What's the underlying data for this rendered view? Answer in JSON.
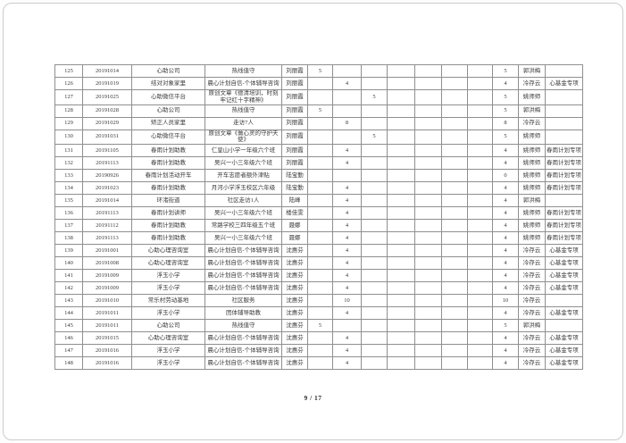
{
  "page": {
    "footer": "9 / 17"
  },
  "table": {
    "rows": [
      {
        "no": "125",
        "date": "20191014",
        "location": "心助公司",
        "activity": "热线值守",
        "volunteer": "刘丽霞",
        "hours": [
          "5",
          "",
          "",
          "",
          "",
          "",
          ""
        ],
        "total": "5",
        "reviewer": "郭洪梅",
        "project": ""
      },
      {
        "no": "126",
        "date": "20191019",
        "location": "结对对象家里",
        "activity": "晨心计划自信-个体辅导咨询",
        "volunteer": "刘丽霞",
        "hours": [
          "",
          "4",
          "",
          "",
          "",
          "",
          ""
        ],
        "total": "4",
        "reviewer": "冷存云",
        "project": "心基金专项"
      },
      {
        "no": "127",
        "date": "20191025",
        "location": "心助微信平台",
        "activity": "原创文章《德清培训，时刻牢记红十字精神》",
        "volunteer": "刘丽霞",
        "hours": [
          "",
          "",
          "5",
          "",
          "",
          "",
          ""
        ],
        "total": "5",
        "reviewer": "姚师师",
        "project": ""
      },
      {
        "no": "128",
        "date": "20191028",
        "location": "心助公司",
        "activity": "热线值守",
        "volunteer": "刘丽霞",
        "hours": [
          "5",
          "",
          "",
          "",
          "",
          "",
          ""
        ],
        "total": "5",
        "reviewer": "郭洪梅",
        "project": ""
      },
      {
        "no": "129",
        "date": "20191029",
        "location": "矫正人员家里",
        "activity": "走访7人",
        "volunteer": "刘丽霞",
        "hours": [
          "",
          "8",
          "",
          "",
          "",
          "",
          ""
        ],
        "total": "8",
        "reviewer": "冷存云",
        "project": ""
      },
      {
        "no": "130",
        "date": "20191031",
        "location": "心助微信平台",
        "activity": "原创文章《做心灵的守护天使》",
        "volunteer": "刘丽霞",
        "hours": [
          "",
          "",
          "5",
          "",
          "",
          "",
          ""
        ],
        "total": "5",
        "reviewer": "姚师师",
        "project": ""
      },
      {
        "no": "131",
        "date": "20191105",
        "location": "春雨计划助教",
        "activity": "仁皇山小学一年级六个班",
        "volunteer": "刘丽霞",
        "hours": [
          "",
          "4",
          "",
          "",
          "",
          "",
          ""
        ],
        "total": "4",
        "reviewer": "姚师师",
        "project": "春雨计划专项"
      },
      {
        "no": "132",
        "date": "20191113",
        "location": "春雨计划助教",
        "activity": "吴兴一小三年级六个班",
        "volunteer": "刘丽霞",
        "hours": [
          "",
          "4",
          "",
          "",
          "",
          "",
          ""
        ],
        "total": "4",
        "reviewer": "姚师师",
        "project": "春雨计划专项"
      },
      {
        "no": "133",
        "date": "20190926",
        "location": "春雨计划活动开车",
        "activity": "开车志愿者额外津贴",
        "volunteer": "陆宝勤",
        "hours": [
          "",
          "",
          "",
          "",
          "",
          "",
          ""
        ],
        "total": "0",
        "reviewer": "姚师师",
        "project": "春雨计划专项"
      },
      {
        "no": "134",
        "date": "20191023",
        "location": "春雨计划助教",
        "activity": "月河小学浮玉校区六年级",
        "volunteer": "陆宝勤",
        "hours": [
          "",
          "4",
          "",
          "",
          "",
          "",
          ""
        ],
        "total": "4",
        "reviewer": "姚师师",
        "project": "春雨计划专项"
      },
      {
        "no": "135",
        "date": "20191014",
        "location": "环渚街道",
        "activity": "社区走访1人",
        "volunteer": "陆峰",
        "hours": [
          "",
          "4",
          "",
          "",
          "",
          "",
          ""
        ],
        "total": "4",
        "reviewer": "郭洪梅",
        "project": ""
      },
      {
        "no": "136",
        "date": "20191113",
        "location": "春雨计划讲师",
        "activity": "吴兴一小三年级六个班",
        "volunteer": "楼佳雯",
        "hours": [
          "",
          "4",
          "",
          "",
          "",
          "",
          ""
        ],
        "total": "4",
        "reviewer": "姚师师",
        "project": "春雨计划专项"
      },
      {
        "no": "137",
        "date": "20191112",
        "location": "春雨计划助教",
        "activity": "常路学校三四年级五个班",
        "volunteer": "聂娜",
        "hours": [
          "",
          "4",
          "",
          "",
          "",
          "",
          ""
        ],
        "total": "4",
        "reviewer": "姚师师",
        "project": "春雨计划专项"
      },
      {
        "no": "138",
        "date": "20191113",
        "location": "春雨计划助教",
        "activity": "吴兴一小三年级六个班",
        "volunteer": "聂娜",
        "hours": [
          "",
          "4",
          "",
          "",
          "",
          "",
          ""
        ],
        "total": "4",
        "reviewer": "姚师师",
        "project": "春雨计划专项"
      },
      {
        "no": "139",
        "date": "20191001",
        "location": "心助心理咨询室",
        "activity": "晨心计划自信-个体辅导咨询",
        "volunteer": "沈惠芬",
        "hours": [
          "",
          "4",
          "",
          "",
          "",
          "",
          ""
        ],
        "total": "4",
        "reviewer": "冷存云",
        "project": "心基金专项"
      },
      {
        "no": "140",
        "date": "20191008",
        "location": "心助心理咨询室",
        "activity": "晨心计划自信-个体辅导咨询",
        "volunteer": "沈惠芬",
        "hours": [
          "",
          "4",
          "",
          "",
          "",
          "",
          ""
        ],
        "total": "4",
        "reviewer": "冷存云",
        "project": "心基金专项"
      },
      {
        "no": "141",
        "date": "20191009",
        "location": "浮玉小学",
        "activity": "晨心计划自信-个体辅导咨询",
        "volunteer": "沈惠芬",
        "hours": [
          "",
          "4",
          "",
          "",
          "",
          "",
          ""
        ],
        "total": "4",
        "reviewer": "冷存云",
        "project": "心基金专项"
      },
      {
        "no": "142",
        "date": "20191009",
        "location": "浮玉小学",
        "activity": "晨心计划自信-个体辅导咨询",
        "volunteer": "沈惠芬",
        "hours": [
          "",
          "4",
          "",
          "",
          "",
          "",
          ""
        ],
        "total": "4",
        "reviewer": "冷存云",
        "project": "心基金专项"
      },
      {
        "no": "143",
        "date": "20191010",
        "location": "常乐村劳动基地",
        "activity": "社区服务",
        "volunteer": "沈惠芬",
        "hours": [
          "",
          "10",
          "",
          "",
          "",
          "",
          ""
        ],
        "total": "10",
        "reviewer": "冷存云",
        "project": ""
      },
      {
        "no": "144",
        "date": "20191011",
        "location": "浮玉小学",
        "activity": "团体辅导助教",
        "volunteer": "沈惠芬",
        "hours": [
          "",
          "4",
          "",
          "",
          "",
          "",
          ""
        ],
        "total": "4",
        "reviewer": "冷存云",
        "project": "心基金专项"
      },
      {
        "no": "145",
        "date": "20191011",
        "location": "心助公司",
        "activity": "热线值守",
        "volunteer": "沈惠芬",
        "hours": [
          "5",
          "",
          "",
          "",
          "",
          "",
          ""
        ],
        "total": "5",
        "reviewer": "郭洪梅",
        "project": ""
      },
      {
        "no": "146",
        "date": "20191015",
        "location": "心助心理咨询室",
        "activity": "晨心计划自信-个体辅导咨询",
        "volunteer": "沈惠芬",
        "hours": [
          "",
          "4",
          "",
          "",
          "",
          "",
          ""
        ],
        "total": "4",
        "reviewer": "冷存云",
        "project": "心基金专项"
      },
      {
        "no": "147",
        "date": "20191016",
        "location": "浮玉小学",
        "activity": "晨心计划自信-个体辅导咨询",
        "volunteer": "沈惠芬",
        "hours": [
          "",
          "4",
          "",
          "",
          "",
          "",
          ""
        ],
        "total": "4",
        "reviewer": "冷存云",
        "project": "心基金专项"
      },
      {
        "no": "148",
        "date": "20191016",
        "location": "浮玉小学",
        "activity": "晨心计划自信-个体辅导咨询",
        "volunteer": "沈惠芬",
        "hours": [
          "",
          "4",
          "",
          "",
          "",
          "",
          ""
        ],
        "total": "4",
        "reviewer": "冷存云",
        "project": "心基金专项"
      }
    ]
  }
}
